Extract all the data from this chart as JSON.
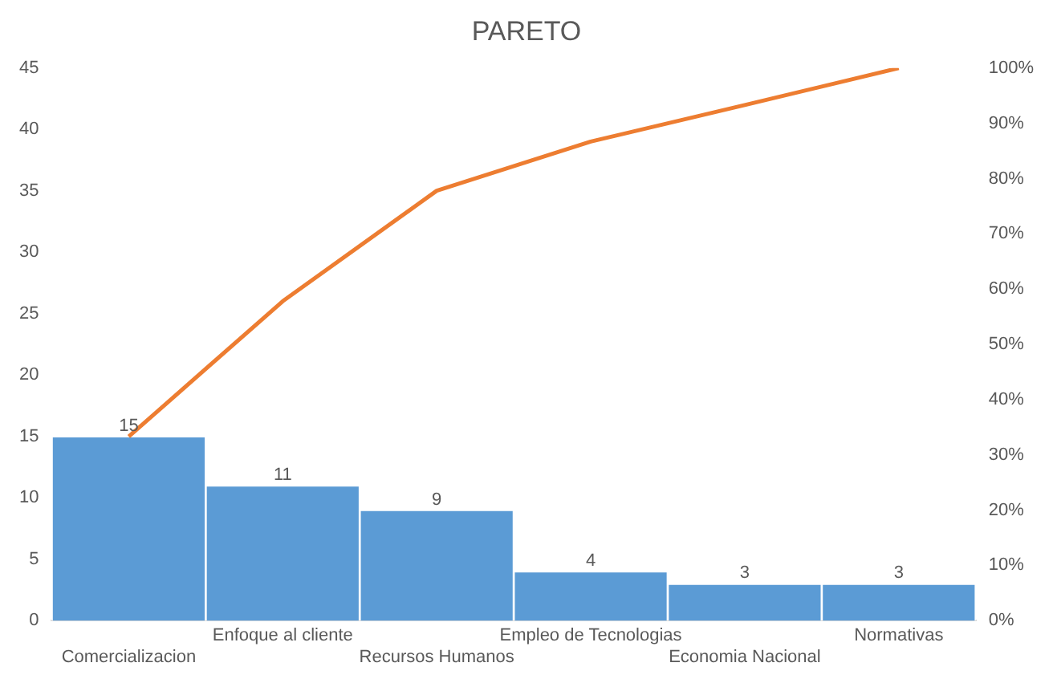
{
  "chart_data": {
    "type": "bar",
    "title": "PARETO",
    "categories": [
      "Comercializacion",
      "Enfoque al cliente",
      "Recursos Humanos",
      "Empleo de Tecnologias",
      "Economia Nacional",
      "Normativas"
    ],
    "series": [
      {
        "color": "#5b9bd5",
        "values": [
          15,
          11,
          9,
          4,
          3,
          3
        ],
        "value_labels": [
          "15",
          "11",
          "9",
          "4",
          "3",
          "3"
        ]
      },
      {
        "type": "line",
        "axis": "y2",
        "color": "#ed7d31",
        "values": [
          33.3,
          57.8,
          77.8,
          86.7,
          93.3,
          100
        ],
        "marker": "none"
      }
    ],
    "ylim": [
      0,
      45
    ],
    "yticks": [
      0,
      5,
      10,
      15,
      20,
      25,
      30,
      35,
      40,
      45
    ],
    "y2lim": [
      0,
      100
    ],
    "y2ticks": [
      {
        "value": 0,
        "label": "0%"
      },
      {
        "value": 10,
        "label": "10%"
      },
      {
        "value": 20,
        "label": "20%"
      },
      {
        "value": 30,
        "label": "30%"
      },
      {
        "value": 40,
        "label": "40%"
      },
      {
        "value": 50,
        "label": "50%"
      },
      {
        "value": 60,
        "label": "60%"
      },
      {
        "value": 70,
        "label": "70%"
      },
      {
        "value": 80,
        "label": "80%"
      },
      {
        "value": 90,
        "label": "90%"
      },
      {
        "value": 100,
        "label": "100%"
      }
    ],
    "grid": false,
    "legend": false
  }
}
